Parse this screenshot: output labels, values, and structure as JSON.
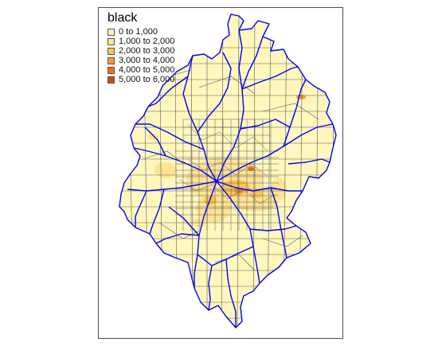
{
  "map": {
    "legend": {
      "title": "black",
      "classes": [
        {
          "label": "0 to 1,000",
          "color": "#FFF7BC"
        },
        {
          "label": "1,000 to 2,000",
          "color": "#FEE391"
        },
        {
          "label": "2,000 to 3,000",
          "color": "#FEC44F"
        },
        {
          "label": "3,000 to 4,000",
          "color": "#FE9929"
        },
        {
          "label": "4,000 to 5,000",
          "color": "#EC7014"
        },
        {
          "label": "5,000 to 6,000",
          "color": "#CC4C02"
        }
      ]
    },
    "colors": {
      "tract_border": "#5a5a5a",
      "district_border": "#0000ff",
      "frame_border": "#4d4d4d"
    }
  }
}
